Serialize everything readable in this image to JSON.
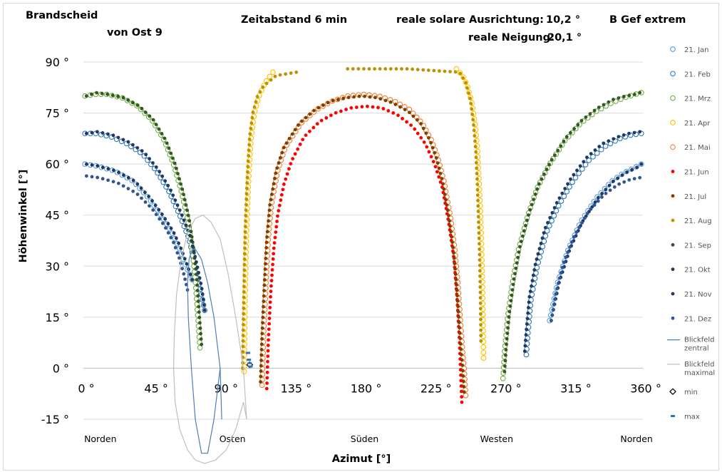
{
  "header": {
    "title": "Brandscheid",
    "subtitle": "von Ost 9",
    "interval": "Zeitabstand  6 min",
    "orientation_label": "reale solare Ausrichtung:",
    "orientation_value": "10,2 °",
    "tilt_label": "reale Neigung:",
    "tilt_value": "20,1 °",
    "variant": "B Gef extrem"
  },
  "chart_data": {
    "type": "scatter",
    "xlabel": "Azimut [°]",
    "ylabel": "Höhenwinkel [°]",
    "xlim": [
      0,
      360
    ],
    "ylim": [
      -15,
      90
    ],
    "x_ticks": [
      0,
      45,
      90,
      135,
      180,
      225,
      270,
      315,
      360
    ],
    "x_tick_labels": [
      "0 °",
      "45 °",
      "90 °",
      "135 °",
      "180 °",
      "225 °",
      "270 °",
      "315 °",
      "360 °"
    ],
    "y_ticks": [
      -15,
      0,
      15,
      30,
      45,
      60,
      75,
      90
    ],
    "y_tick_labels": [
      "-15 °",
      "0 °",
      "15 °",
      "30 °",
      "45 °",
      "60 °",
      "75 °",
      "90 °"
    ],
    "grid": "horizontal",
    "legend_position": "right",
    "direction_labels": [
      {
        "text": "Norden",
        "azimuth": 10
      },
      {
        "text": "Osten",
        "azimuth": 95
      },
      {
        "text": "Süden",
        "azimuth": 180
      },
      {
        "text": "Westen",
        "azimuth": 265
      },
      {
        "text": "Norden",
        "azimuth": 355
      }
    ],
    "series": [
      {
        "name": "21. Jan",
        "color": "#5b9bd5",
        "marker": "open",
        "branches": [
          {
            "x": [
              1,
              8,
              20,
              32,
              42,
              50,
              57,
              62,
              66,
              70
            ],
            "y": [
              60,
              59.5,
              58,
              55,
              50,
              45,
              40,
              35,
              30,
              26
            ]
          },
          {
            "x": [
              300,
              305,
              312,
              320,
              330,
              340,
              348,
              355,
              359
            ],
            "y": [
              14,
              25,
              35,
              43,
              50,
              55,
              57.5,
              59,
              60
            ]
          }
        ]
      },
      {
        "name": "21. Feb",
        "color": "#2e75b6",
        "marker": "open",
        "branches": [
          {
            "x": [
              1,
              8,
              18,
              28,
              38,
              47,
              55,
              62,
              68,
              72,
              75,
              78
            ],
            "y": [
              69,
              69,
              68,
              66,
              63,
              58,
              52,
              45,
              38,
              30,
              24,
              17
            ]
          },
          {
            "x": [
              285,
              286,
              288,
              292,
              298,
              306,
              315,
              325,
              335,
              345,
              352,
              359
            ],
            "y": [
              4,
              10,
              20,
              30,
              40,
              48,
              55,
              61,
              65,
              67.5,
              68.5,
              69
            ]
          }
        ]
      },
      {
        "name": "21. Mrz",
        "color": "#70ad47",
        "marker": "open",
        "branches": [
          {
            "x": [
              1,
              7,
              15,
              25,
              35,
              44,
              52,
              58,
              63,
              67,
              70,
              72,
              73.5,
              75
            ],
            "y": [
              80,
              80.5,
              80.5,
              79.5,
              77,
              73,
              67,
              60,
              52,
              44,
              35,
              26,
              16,
              6
            ]
          },
          {
            "x": [
              270,
              271,
              273,
              276,
              280,
              286,
              292,
              300,
              310,
              320,
              330,
              340,
              348,
              355,
              359
            ],
            "y": [
              -3,
              5,
              15,
              25,
              35,
              45,
              53,
              60,
              67,
              72,
              75.5,
              78,
              79.5,
              80.5,
              81
            ]
          }
        ]
      },
      {
        "name": "21. Apr",
        "color": "#ffc000",
        "marker": "open",
        "branches": [
          {
            "x": [
              103.5,
              103.8,
              104.1,
              104.5,
              105,
              105.8,
              106.8,
              108,
              110,
              113,
              117,
              122
            ],
            "y": [
              -1,
              10,
              20,
              30,
              40,
              50,
              60,
              68,
              75,
              80,
              84,
              87
            ]
          },
          {
            "x": [
              240,
              244,
              247,
              250,
              252,
              253.5,
              254.5,
              255.5,
              256.2,
              256.8,
              257.2,
              257.5
            ],
            "y": [
              88,
              86,
              83,
              78,
              72,
              65,
              56,
              46,
              36,
              25,
              14,
              3
            ]
          }
        ]
      },
      {
        "name": "21. Mai",
        "color": "#ed7d31",
        "marker": "open",
        "branches": [
          {
            "x": [
              115,
              116,
              117.5,
              119,
              121,
              125,
              130,
              140,
              150,
              160,
              170,
              180,
              190,
              200,
              210,
              218,
              224,
              228,
              232,
              236,
              239,
              241,
              242.5,
              244,
              245,
              246
            ],
            "y": [
              -5,
              10,
              25,
              38,
              48,
              58,
              65,
              72,
              76,
              78.5,
              80,
              80.5,
              80,
              78.5,
              76,
              72,
              67,
              62,
              55,
              45,
              35,
              25,
              15,
              5,
              0,
              -8
            ]
          }
        ]
      },
      {
        "name": "21. Jun",
        "color": "#ff0000",
        "marker": "dot",
        "branches": [
          {
            "x": [
              118,
              119,
              120.5,
              122.5,
              125,
              129,
              134,
              142,
              152,
              162,
              172,
              182,
              192,
              202,
              212,
              220,
              226,
              231,
              235,
              238.5,
              240.5,
              242,
              243.5
            ],
            "y": [
              -6,
              8,
              22,
              35,
              45,
              54,
              61,
              68,
              72.5,
              75,
              76.5,
              77,
              76.5,
              74.5,
              71,
              66,
              60,
              53,
              43,
              32,
              20,
              8,
              -10
            ]
          }
        ]
      },
      {
        "name": "21. Jul",
        "color": "#7f3f00",
        "marker": "dot",
        "branches": [
          {
            "x": [
              114,
              115,
              116.5,
              118,
              120,
              124,
              129,
              139,
              149,
              159,
              169,
              179,
              189,
              199,
              209,
              217,
              223,
              227,
              231,
              235,
              238,
              240,
              241.5,
              243,
              244,
              245
            ],
            "y": [
              -4,
              10,
              25,
              38,
              48,
              58,
              65,
              72,
              76,
              78.5,
              79.5,
              80,
              79.5,
              78,
              75.5,
              72,
              67,
              62,
              55,
              45,
              35,
              25,
              15,
              5,
              0,
              -7
            ]
          }
        ]
      },
      {
        "name": "21. Aug",
        "color": "#bf9000",
        "marker": "dot",
        "branches": [
          {
            "x": [
              102.5,
              102.8,
              103.2,
              103.6,
              104.1,
              104.9,
              105.9,
              107,
              109,
              112,
              116,
              124,
              137
            ],
            "y": [
              0,
              10,
              20,
              30,
              40,
              50,
              60,
              68,
              75,
              80,
              83,
              86,
              87
            ]
          },
          {
            "x": [
              170,
              208,
              242,
              246,
              249,
              251,
              252.5,
              253.5,
              254.3,
              255,
              255.5,
              255.8
            ],
            "y": [
              88,
              88,
              87,
              84,
              79,
              72,
              64,
              54,
              43,
              32,
              20,
              8
            ]
          }
        ]
      },
      {
        "name": "21. Sep",
        "color": "#375623",
        "marker": "dot",
        "branches": [
          {
            "x": [
              2,
              8,
              16,
              26,
              36,
              45,
              53,
              59,
              64,
              68,
              71,
              73,
              74.5,
              76
            ],
            "y": [
              80,
              81,
              80.5,
              79.5,
              77,
              73,
              67,
              60,
              52,
              44,
              35,
              26,
              16,
              7
            ]
          },
          {
            "x": [
              271,
              272,
              274,
              277,
              281,
              287,
              293,
              301,
              311,
              321,
              331,
              341,
              349,
              355,
              358
            ],
            "y": [
              -1,
              6,
              16,
              26,
              36,
              46,
              54,
              61,
              68,
              73,
              76.5,
              79,
              80,
              80.5,
              81
            ]
          }
        ]
      },
      {
        "name": "21. Okt",
        "color": "#1f3864",
        "marker": "dot",
        "branches": [
          {
            "x": [
              2,
              9,
              19,
              29,
              39,
              48,
              56,
              63,
              69,
              73,
              76,
              78
            ],
            "y": [
              69,
              69.5,
              68.5,
              66.5,
              63.5,
              58.5,
              52.5,
              45.5,
              38.5,
              30.5,
              24,
              17
            ]
          },
          {
            "x": [
              284,
              285,
              287,
              291,
              297,
              305,
              314,
              324,
              334,
              344,
              351,
              358
            ],
            "y": [
              5,
              11,
              21,
              31,
              41,
              49,
              56,
              62,
              66,
              68,
              69,
              69.5
            ]
          }
        ]
      },
      {
        "name": "21. Nov",
        "color": "#203864",
        "marker": "dot",
        "branches": [
          {
            "x": [
              2,
              9,
              21,
              33,
              43,
              51,
              58,
              63,
              67,
              70
            ],
            "y": [
              60,
              59.5,
              58,
              55,
              50,
              45,
              40,
              35,
              30,
              26
            ]
          },
          {
            "x": [
              301,
              306,
              313,
              321,
              331,
              341,
              349,
              356,
              359
            ],
            "y": [
              14,
              25,
              35,
              43,
              50,
              55,
              57.5,
              59,
              60
            ]
          }
        ]
      },
      {
        "name": "21. Dez",
        "color": "#2f5597",
        "marker": "dot",
        "branches": [
          {
            "x": [
              2,
              10,
              22,
              34,
              44,
              52,
              58,
              62,
              65,
              67
            ],
            "y": [
              56.5,
              56,
              54.5,
              51.5,
              47,
              42,
              37,
              32,
              27,
              23
            ]
          },
          {
            "x": [
              301,
              304,
              309,
              316,
              325,
              335,
              344,
              352,
              358
            ],
            "y": [
              14,
              22,
              31,
              39,
              46,
              51,
              54,
              55.5,
              56
            ]
          }
        ]
      },
      {
        "name": "Blickfeld zentral",
        "color": "#4a7ebb",
        "marker": "line",
        "branches": [
          {
            "x": [
              89,
              88,
              84,
              80,
              76,
              72,
              70,
              68,
              67,
              67.5,
              69.5,
              72,
              76,
              80,
              84,
              88,
              89
            ],
            "y": [
              -15,
              0,
              15,
              25,
              32,
              35,
              35,
              32,
              25,
              15,
              0,
              -15,
              -25,
              -25,
              -15,
              0,
              -15
            ]
          }
        ]
      },
      {
        "name": "Blickfeld maximal",
        "color": "#bfbfbf",
        "marker": "line",
        "branches": [
          {
            "x": [
              105,
              103,
              98,
              93,
              88,
              82,
              77,
              72,
              67,
              63,
              60,
              58.5,
              58,
              59,
              62,
              67,
              72,
              78,
              85,
              92,
              98,
              103,
              105
            ],
            "y": [
              -15,
              0,
              15,
              28,
              38,
              43,
              45,
              44,
              40,
              32,
              22,
              10,
              0,
              -10,
              -18,
              -24,
              -27,
              -28,
              -27,
              -24,
              -18,
              -10,
              -15
            ]
          }
        ]
      },
      {
        "name": "min",
        "color": "#000000",
        "marker": "diamond",
        "branches": [
          {
            "x": [
              107
            ],
            "y": [
              1
            ]
          }
        ]
      },
      {
        "name": "max",
        "color": "#2e75b6",
        "marker": "dash",
        "branches": [
          {
            "x": [
              106,
              106.5,
              107,
              107.5
            ],
            "y": [
              4.5,
              2.5,
              1.5,
              0.5
            ]
          }
        ]
      }
    ]
  }
}
